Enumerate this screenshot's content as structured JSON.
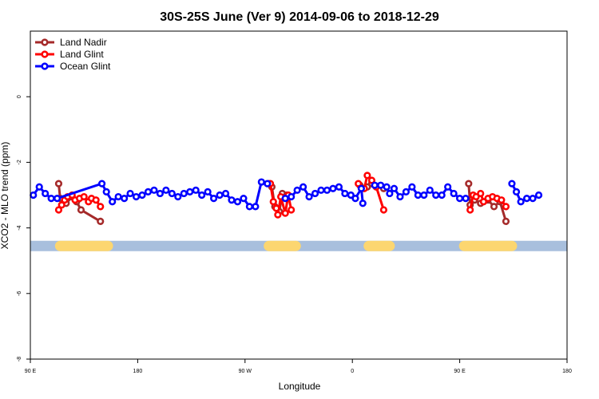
{
  "chart_data": {
    "type": "line",
    "title": "30S-25S June (Ver 9)   2014-09-06 to 2018-12-29",
    "xlabel": "Longitude",
    "ylabel": "XCO2 - MLO trend (ppm)",
    "xlim": [
      90,
      450
    ],
    "ylim": [
      -8,
      2
    ],
    "x_ticks": [
      90,
      162,
      234,
      306,
      378,
      450
    ],
    "x_tick_labels": [
      "90 E",
      "180",
      "90 W",
      "0",
      "90 E",
      "180"
    ],
    "y_ticks": [
      -8,
      -6,
      -4,
      -2,
      0
    ],
    "y_tick_labels": [
      "-8",
      "-6",
      "-4",
      "-2",
      "0"
    ],
    "legend_position": "top-left",
    "colors": {
      "land_nadir": "#a52a2a",
      "land_glint": "#ff0000",
      "ocean_glint": "#0000ff",
      "ocean_band": "#a8bfdd",
      "land_band": "#fcd670"
    },
    "surface_band": {
      "y": -4.55,
      "land_segments": [
        [
          110,
          142
        ],
        [
          250,
          268
        ],
        [
          317,
          331
        ],
        [
          381,
          413
        ]
      ]
    },
    "series": [
      {
        "name": "Land Nadir",
        "color": "#a52a2a",
        "segments": [
          [
            [
              109,
              -2.65
            ],
            [
              110,
              -3.1
            ],
            [
              114,
              -3.25
            ],
            [
              118,
              -3.05
            ],
            [
              121,
              -3.2
            ],
            [
              124,
              -3.45
            ],
            [
              137,
              -3.8
            ]
          ],
          [
            [
              250,
              -2.65
            ],
            [
              252,
              -2.75
            ],
            [
              254,
              -3.35
            ],
            [
              257,
              -3.5
            ],
            [
              259,
              -2.95
            ],
            [
              262,
              -3.0
            ]
          ],
          [
            [
              311,
              -2.7
            ],
            [
              316,
              -2.75
            ],
            [
              319,
              -2.65
            ],
            [
              327,
              -2.8
            ]
          ],
          [
            [
              384,
              -2.65
            ],
            [
              385,
              -3.3
            ],
            [
              388,
              -3.15
            ],
            [
              392,
              -3.25
            ],
            [
              397,
              -3.15
            ],
            [
              401,
              -3.35
            ],
            [
              405,
              -3.2
            ],
            [
              409,
              -3.8
            ]
          ]
        ]
      },
      {
        "name": "Land Glint",
        "color": "#ff0000",
        "segments": [
          [
            [
              109,
              -3.45
            ],
            [
              111,
              -3.3
            ],
            [
              113,
              -3.15
            ],
            [
              115,
              -3.05
            ],
            [
              118,
              -3.0
            ],
            [
              120,
              -3.15
            ],
            [
              123,
              -3.1
            ],
            [
              126,
              -3.05
            ],
            [
              129,
              -3.2
            ],
            [
              131,
              -3.1
            ],
            [
              134,
              -3.15
            ],
            [
              137,
              -3.35
            ]
          ],
          [
            [
              251,
              -2.65
            ],
            [
              253,
              -3.2
            ],
            [
              255,
              -3.4
            ],
            [
              256,
              -3.6
            ],
            [
              258,
              -3.05
            ],
            [
              261,
              -3.55
            ],
            [
              263,
              -3.0
            ],
            [
              265,
              -3.45
            ]
          ],
          [
            [
              310,
              -2.65
            ],
            [
              314,
              -2.8
            ],
            [
              316,
              -2.4
            ],
            [
              319,
              -2.55
            ],
            [
              322,
              -2.75
            ],
            [
              327,
              -3.45
            ]
          ],
          [
            [
              385,
              -3.45
            ],
            [
              387,
              -3.0
            ],
            [
              389,
              -3.05
            ],
            [
              392,
              -2.95
            ],
            [
              394,
              -3.2
            ],
            [
              397,
              -3.1
            ],
            [
              400,
              -3.05
            ],
            [
              403,
              -3.1
            ],
            [
              406,
              -3.15
            ],
            [
              409,
              -3.35
            ]
          ]
        ]
      },
      {
        "name": "Ocean Glint",
        "color": "#0000ff",
        "segments": [
          [
            [
              92,
              -3.0
            ],
            [
              96,
              -2.75
            ],
            [
              100,
              -2.95
            ],
            [
              104,
              -3.1
            ],
            [
              108,
              -3.1
            ],
            [
              138,
              -2.65
            ],
            [
              141,
              -2.9
            ],
            [
              145,
              -3.2
            ],
            [
              149,
              -3.05
            ],
            [
              153,
              -3.1
            ],
            [
              157,
              -2.95
            ],
            [
              161,
              -3.05
            ],
            [
              165,
              -3.0
            ],
            [
              169,
              -2.9
            ],
            [
              173,
              -2.85
            ],
            [
              177,
              -2.95
            ],
            [
              181,
              -2.85
            ],
            [
              185,
              -2.95
            ],
            [
              189,
              -3.05
            ],
            [
              193,
              -2.95
            ],
            [
              197,
              -2.9
            ],
            [
              201,
              -2.85
            ],
            [
              205,
              -3.0
            ],
            [
              209,
              -2.9
            ],
            [
              213,
              -3.1
            ],
            [
              217,
              -3.0
            ],
            [
              221,
              -2.95
            ],
            [
              225,
              -3.15
            ],
            [
              229,
              -3.2
            ],
            [
              233,
              -3.1
            ],
            [
              237,
              -3.35
            ],
            [
              241,
              -3.35
            ],
            [
              245,
              -2.6
            ],
            [
              249,
              -2.65
            ]
          ],
          [
            [
              261,
              -3.1
            ],
            [
              265,
              -3.05
            ],
            [
              269,
              -2.85
            ],
            [
              273,
              -2.75
            ],
            [
              277,
              -3.05
            ],
            [
              281,
              -2.95
            ],
            [
              285,
              -2.85
            ],
            [
              289,
              -2.85
            ],
            [
              293,
              -2.8
            ],
            [
              297,
              -2.75
            ],
            [
              301,
              -2.95
            ],
            [
              305,
              -3.0
            ],
            [
              308,
              -3.1
            ],
            [
              312,
              -2.8
            ],
            [
              313,
              -3.25
            ]
          ],
          [
            [
              321,
              -2.7
            ],
            [
              325,
              -2.7
            ],
            [
              329,
              -2.75
            ],
            [
              331,
              -2.95
            ],
            [
              334,
              -2.8
            ],
            [
              338,
              -3.05
            ],
            [
              342,
              -2.9
            ],
            [
              346,
              -2.75
            ],
            [
              350,
              -3.0
            ],
            [
              354,
              -3.0
            ],
            [
              358,
              -2.85
            ],
            [
              362,
              -3.0
            ],
            [
              366,
              -3.0
            ],
            [
              370,
              -2.75
            ],
            [
              374,
              -2.95
            ],
            [
              378,
              -3.1
            ],
            [
              382,
              -3.1
            ]
          ],
          [
            [
              413,
              -2.65
            ],
            [
              416,
              -2.9
            ],
            [
              419,
              -3.2
            ],
            [
              423,
              -3.1
            ],
            [
              427,
              -3.1
            ],
            [
              431,
              -3.0
            ]
          ]
        ]
      }
    ]
  }
}
